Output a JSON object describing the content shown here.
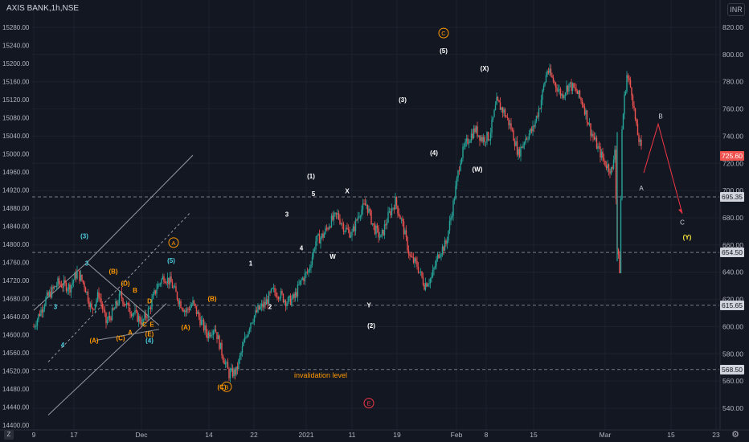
{
  "header": {
    "symbol": "AXIS BANK",
    "sep": ", ",
    "interval": "1h",
    "sep2": ", ",
    "exchange": "NSE"
  },
  "currency_badge": "INR",
  "corner_label": "Z",
  "settings_icon": "gear-icon",
  "colors": {
    "bg": "#131722",
    "up": "#26a69a",
    "down": "#ef5350",
    "wave_major": "#ffffff",
    "wave_minor": "#ff9800",
    "wave_cyan": "#4dd0e1",
    "label_dark": "#d1d4dc",
    "last_price": "#ef5350",
    "arrow": "#f23645"
  },
  "price_tags": [
    {
      "value": "725.60",
      "price": 725.6,
      "style": "last"
    },
    {
      "value": "695.35",
      "price": 695.35,
      "style": "level"
    },
    {
      "value": "654.50",
      "price": 654.5,
      "style": "level"
    },
    {
      "value": "615.65",
      "price": 615.65,
      "style": "level"
    },
    {
      "value": "568.50",
      "price": 568.5,
      "style": "level"
    }
  ],
  "chart_data": {
    "type": "candlestick",
    "left_axis_ticks": [
      "15280.00",
      "15240.00",
      "15200.00",
      "15160.00",
      "15120.00",
      "15080.00",
      "15040.00",
      "15000.00",
      "14960.00",
      "14920.00",
      "14880.00",
      "14840.00",
      "14800.00",
      "14760.00",
      "14720.00",
      "14680.00",
      "14640.00",
      "14600.00",
      "14560.00",
      "14520.00",
      "14480.00",
      "14440.00",
      "14400.00"
    ],
    "right_axis_ticks": [
      "820.00",
      "800.00",
      "780.00",
      "760.00",
      "740.00",
      "720.00",
      "700.00",
      "680.00",
      "660.00",
      "640.00",
      "620.00",
      "600.00",
      "580.00",
      "560.00",
      "540.00"
    ],
    "x_ticks": [
      "9",
      "17",
      "Dec",
      "14",
      "22",
      "2021",
      "11",
      "19",
      "Feb",
      "8",
      "15",
      "Mar",
      "15",
      "23"
    ],
    "ylim": [
      536,
      825
    ],
    "horizontal_levels": [
      695.35,
      654.5,
      615.65,
      568.5
    ],
    "invalidation_text": "invalidation level",
    "close_path": [
      [
        0,
        600
      ],
      [
        5,
        620
      ],
      [
        10,
        632
      ],
      [
        15,
        629
      ],
      [
        18,
        640
      ],
      [
        21,
        631
      ],
      [
        24,
        612
      ],
      [
        27,
        624
      ],
      [
        30,
        603
      ],
      [
        33,
        611
      ],
      [
        36,
        623
      ],
      [
        39,
        614
      ],
      [
        42,
        609
      ],
      [
        45,
        603
      ],
      [
        48,
        613
      ],
      [
        51,
        629
      ],
      [
        54,
        637
      ],
      [
        57,
        632
      ],
      [
        60,
        620
      ],
      [
        63,
        611
      ],
      [
        66,
        617
      ],
      [
        69,
        605
      ],
      [
        72,
        594
      ],
      [
        75,
        600
      ],
      [
        78,
        581
      ],
      [
        81,
        565
      ],
      [
        84,
        567
      ],
      [
        87,
        587
      ],
      [
        90,
        604
      ],
      [
        93,
        612
      ],
      [
        96,
        617
      ],
      [
        99,
        626
      ],
      [
        102,
        624
      ],
      [
        105,
        618
      ],
      [
        108,
        621
      ],
      [
        111,
        634
      ],
      [
        114,
        641
      ],
      [
        117,
        663
      ],
      [
        120,
        667
      ],
      [
        123,
        677
      ],
      [
        126,
        682
      ],
      [
        129,
        672
      ],
      [
        132,
        668
      ],
      [
        135,
        684
      ],
      [
        138,
        690
      ],
      [
        141,
        673
      ],
      [
        144,
        665
      ],
      [
        147,
        681
      ],
      [
        150,
        692
      ],
      [
        153,
        675
      ],
      [
        156,
        651
      ],
      [
        159,
        645
      ],
      [
        162,
        631
      ],
      [
        165,
        636
      ],
      [
        168,
        654
      ],
      [
        171,
        661
      ],
      [
        174,
        690
      ],
      [
        177,
        724
      ],
      [
        180,
        737
      ],
      [
        183,
        745
      ],
      [
        186,
        738
      ],
      [
        189,
        740
      ],
      [
        192,
        765
      ],
      [
        195,
        758
      ],
      [
        198,
        746
      ],
      [
        201,
        727
      ],
      [
        204,
        739
      ],
      [
        207,
        745
      ],
      [
        210,
        763
      ],
      [
        213,
        789
      ],
      [
        216,
        779
      ],
      [
        219,
        770
      ],
      [
        222,
        778
      ],
      [
        225,
        773
      ],
      [
        228,
        763
      ],
      [
        231,
        744
      ],
      [
        234,
        731
      ],
      [
        237,
        720
      ],
      [
        240,
        714
      ],
      [
        241,
        733
      ],
      [
        242,
        657
      ],
      [
        243,
        642
      ],
      [
        244,
        745
      ],
      [
        245,
        768
      ],
      [
        246,
        785
      ],
      [
        248,
        773
      ],
      [
        250,
        745
      ],
      [
        252,
        730
      ]
    ],
    "projection": {
      "points": [
        [
          253,
          713
        ],
        [
          259,
          749
        ],
        [
          269,
          683
        ]
      ],
      "labels": [
        "A",
        "B",
        "C"
      ],
      "end_label": "(Y)"
    },
    "wave_labels": [
      {
        "text": "(3)",
        "t": 21,
        "p": 665,
        "color": "cyan"
      },
      {
        "text": "3",
        "t": 22,
        "p": 645,
        "color": "cyan"
      },
      {
        "text": "3",
        "t": 9,
        "p": 613,
        "color": "cyan"
      },
      {
        "text": "4",
        "t": 12,
        "p": 585,
        "color": "cyan"
      },
      {
        "text": "(B)",
        "t": 33,
        "p": 639,
        "color": "orange"
      },
      {
        "text": "(D)",
        "t": 38,
        "p": 630,
        "color": "orange"
      },
      {
        "text": "B",
        "t": 42,
        "p": 625,
        "color": "orange"
      },
      {
        "text": "D",
        "t": 48,
        "p": 617,
        "color": "orange"
      },
      {
        "text": "(A)",
        "t": 25,
        "p": 588,
        "color": "orange"
      },
      {
        "text": "(C)",
        "t": 36,
        "p": 590,
        "color": "orange"
      },
      {
        "text": "A",
        "t": 40,
        "p": 594,
        "color": "orange"
      },
      {
        "text": "C",
        "t": 46,
        "p": 600,
        "color": "orange"
      },
      {
        "text": "E",
        "t": 49,
        "p": 600,
        "color": "orange"
      },
      {
        "text": "(E)",
        "t": 48,
        "p": 593,
        "color": "orange"
      },
      {
        "text": "(4)",
        "t": 48,
        "p": 588,
        "color": "cyan"
      },
      {
        "text": "(5)",
        "t": 57,
        "p": 647,
        "color": "cyan"
      },
      {
        "text": "(A)",
        "t": 63,
        "p": 598,
        "color": "orange"
      },
      {
        "text": "(B)",
        "t": 74,
        "p": 619,
        "color": "orange"
      },
      {
        "text": "(C)",
        "t": 78,
        "p": 554,
        "color": "orange"
      },
      {
        "text": "1",
        "t": 90,
        "p": 645,
        "color": "white"
      },
      {
        "text": "2",
        "t": 98,
        "p": 613,
        "color": "white"
      },
      {
        "text": "3",
        "t": 105,
        "p": 681,
        "color": "white"
      },
      {
        "text": "4",
        "t": 111,
        "p": 656,
        "color": "white"
      },
      {
        "text": "5",
        "t": 116,
        "p": 696,
        "color": "white"
      },
      {
        "text": "(1)",
        "t": 115,
        "p": 709,
        "color": "white"
      },
      {
        "text": "W",
        "t": 124,
        "p": 650,
        "color": "white"
      },
      {
        "text": "X",
        "t": 130,
        "p": 698,
        "color": "white"
      },
      {
        "text": "Y",
        "t": 139,
        "p": 614,
        "color": "white"
      },
      {
        "text": "(2)",
        "t": 140,
        "p": 599,
        "color": "white"
      },
      {
        "text": "(3)",
        "t": 153,
        "p": 765,
        "color": "white"
      },
      {
        "text": "(4)",
        "t": 166,
        "p": 726,
        "color": "white"
      },
      {
        "text": "(5)",
        "t": 170,
        "p": 801,
        "color": "white"
      },
      {
        "text": "(X)",
        "t": 187,
        "p": 788,
        "color": "white"
      },
      {
        "text": "(W)",
        "t": 184,
        "p": 714,
        "color": "white"
      }
    ],
    "circled_labels": [
      {
        "text": "A",
        "t": 58,
        "p": 660,
        "color": "orange"
      },
      {
        "text": "B",
        "t": 80,
        "p": 554,
        "color": "orange"
      },
      {
        "text": "C",
        "t": 170,
        "p": 814,
        "color": "orange"
      },
      {
        "text": "E",
        "t": 139,
        "p": 542,
        "color": "red"
      }
    ]
  }
}
